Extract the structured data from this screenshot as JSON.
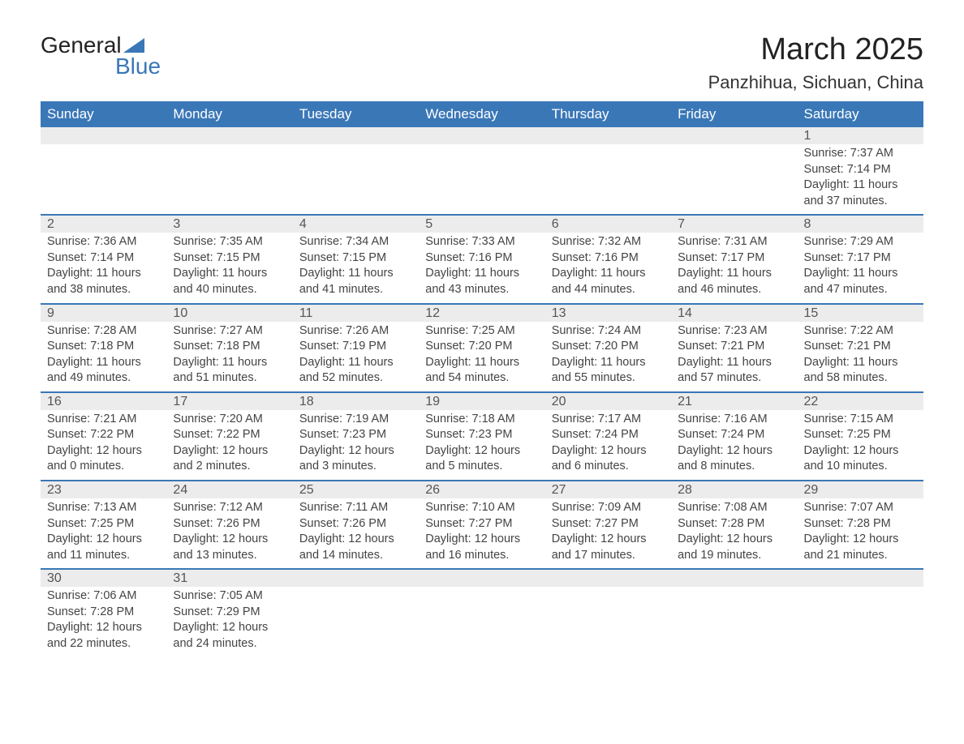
{
  "logo": {
    "text_top": "General",
    "text_bottom": "Blue",
    "accent_color": "#3a77b7"
  },
  "title": "March 2025",
  "location": "Panzhihua, Sichuan, China",
  "colors": {
    "header_bg": "#3a77b7",
    "header_text": "#ffffff",
    "daynum_bg": "#ececec",
    "row_border": "#3a77b7",
    "body_text": "#444444"
  },
  "typography": {
    "title_fontsize": 38,
    "location_fontsize": 22,
    "header_fontsize": 17,
    "daynum_fontsize": 16,
    "detail_fontsize": 14.5
  },
  "day_headers": [
    "Sunday",
    "Monday",
    "Tuesday",
    "Wednesday",
    "Thursday",
    "Friday",
    "Saturday"
  ],
  "weeks": [
    [
      null,
      null,
      null,
      null,
      null,
      null,
      {
        "n": "1",
        "sr": "Sunrise: 7:37 AM",
        "ss": "Sunset: 7:14 PM",
        "d1": "Daylight: 11 hours",
        "d2": "and 37 minutes."
      }
    ],
    [
      {
        "n": "2",
        "sr": "Sunrise: 7:36 AM",
        "ss": "Sunset: 7:14 PM",
        "d1": "Daylight: 11 hours",
        "d2": "and 38 minutes."
      },
      {
        "n": "3",
        "sr": "Sunrise: 7:35 AM",
        "ss": "Sunset: 7:15 PM",
        "d1": "Daylight: 11 hours",
        "d2": "and 40 minutes."
      },
      {
        "n": "4",
        "sr": "Sunrise: 7:34 AM",
        "ss": "Sunset: 7:15 PM",
        "d1": "Daylight: 11 hours",
        "d2": "and 41 minutes."
      },
      {
        "n": "5",
        "sr": "Sunrise: 7:33 AM",
        "ss": "Sunset: 7:16 PM",
        "d1": "Daylight: 11 hours",
        "d2": "and 43 minutes."
      },
      {
        "n": "6",
        "sr": "Sunrise: 7:32 AM",
        "ss": "Sunset: 7:16 PM",
        "d1": "Daylight: 11 hours",
        "d2": "and 44 minutes."
      },
      {
        "n": "7",
        "sr": "Sunrise: 7:31 AM",
        "ss": "Sunset: 7:17 PM",
        "d1": "Daylight: 11 hours",
        "d2": "and 46 minutes."
      },
      {
        "n": "8",
        "sr": "Sunrise: 7:29 AM",
        "ss": "Sunset: 7:17 PM",
        "d1": "Daylight: 11 hours",
        "d2": "and 47 minutes."
      }
    ],
    [
      {
        "n": "9",
        "sr": "Sunrise: 7:28 AM",
        "ss": "Sunset: 7:18 PM",
        "d1": "Daylight: 11 hours",
        "d2": "and 49 minutes."
      },
      {
        "n": "10",
        "sr": "Sunrise: 7:27 AM",
        "ss": "Sunset: 7:18 PM",
        "d1": "Daylight: 11 hours",
        "d2": "and 51 minutes."
      },
      {
        "n": "11",
        "sr": "Sunrise: 7:26 AM",
        "ss": "Sunset: 7:19 PM",
        "d1": "Daylight: 11 hours",
        "d2": "and 52 minutes."
      },
      {
        "n": "12",
        "sr": "Sunrise: 7:25 AM",
        "ss": "Sunset: 7:20 PM",
        "d1": "Daylight: 11 hours",
        "d2": "and 54 minutes."
      },
      {
        "n": "13",
        "sr": "Sunrise: 7:24 AM",
        "ss": "Sunset: 7:20 PM",
        "d1": "Daylight: 11 hours",
        "d2": "and 55 minutes."
      },
      {
        "n": "14",
        "sr": "Sunrise: 7:23 AM",
        "ss": "Sunset: 7:21 PM",
        "d1": "Daylight: 11 hours",
        "d2": "and 57 minutes."
      },
      {
        "n": "15",
        "sr": "Sunrise: 7:22 AM",
        "ss": "Sunset: 7:21 PM",
        "d1": "Daylight: 11 hours",
        "d2": "and 58 minutes."
      }
    ],
    [
      {
        "n": "16",
        "sr": "Sunrise: 7:21 AM",
        "ss": "Sunset: 7:22 PM",
        "d1": "Daylight: 12 hours",
        "d2": "and 0 minutes."
      },
      {
        "n": "17",
        "sr": "Sunrise: 7:20 AM",
        "ss": "Sunset: 7:22 PM",
        "d1": "Daylight: 12 hours",
        "d2": "and 2 minutes."
      },
      {
        "n": "18",
        "sr": "Sunrise: 7:19 AM",
        "ss": "Sunset: 7:23 PM",
        "d1": "Daylight: 12 hours",
        "d2": "and 3 minutes."
      },
      {
        "n": "19",
        "sr": "Sunrise: 7:18 AM",
        "ss": "Sunset: 7:23 PM",
        "d1": "Daylight: 12 hours",
        "d2": "and 5 minutes."
      },
      {
        "n": "20",
        "sr": "Sunrise: 7:17 AM",
        "ss": "Sunset: 7:24 PM",
        "d1": "Daylight: 12 hours",
        "d2": "and 6 minutes."
      },
      {
        "n": "21",
        "sr": "Sunrise: 7:16 AM",
        "ss": "Sunset: 7:24 PM",
        "d1": "Daylight: 12 hours",
        "d2": "and 8 minutes."
      },
      {
        "n": "22",
        "sr": "Sunrise: 7:15 AM",
        "ss": "Sunset: 7:25 PM",
        "d1": "Daylight: 12 hours",
        "d2": "and 10 minutes."
      }
    ],
    [
      {
        "n": "23",
        "sr": "Sunrise: 7:13 AM",
        "ss": "Sunset: 7:25 PM",
        "d1": "Daylight: 12 hours",
        "d2": "and 11 minutes."
      },
      {
        "n": "24",
        "sr": "Sunrise: 7:12 AM",
        "ss": "Sunset: 7:26 PM",
        "d1": "Daylight: 12 hours",
        "d2": "and 13 minutes."
      },
      {
        "n": "25",
        "sr": "Sunrise: 7:11 AM",
        "ss": "Sunset: 7:26 PM",
        "d1": "Daylight: 12 hours",
        "d2": "and 14 minutes."
      },
      {
        "n": "26",
        "sr": "Sunrise: 7:10 AM",
        "ss": "Sunset: 7:27 PM",
        "d1": "Daylight: 12 hours",
        "d2": "and 16 minutes."
      },
      {
        "n": "27",
        "sr": "Sunrise: 7:09 AM",
        "ss": "Sunset: 7:27 PM",
        "d1": "Daylight: 12 hours",
        "d2": "and 17 minutes."
      },
      {
        "n": "28",
        "sr": "Sunrise: 7:08 AM",
        "ss": "Sunset: 7:28 PM",
        "d1": "Daylight: 12 hours",
        "d2": "and 19 minutes."
      },
      {
        "n": "29",
        "sr": "Sunrise: 7:07 AM",
        "ss": "Sunset: 7:28 PM",
        "d1": "Daylight: 12 hours",
        "d2": "and 21 minutes."
      }
    ],
    [
      {
        "n": "30",
        "sr": "Sunrise: 7:06 AM",
        "ss": "Sunset: 7:28 PM",
        "d1": "Daylight: 12 hours",
        "d2": "and 22 minutes."
      },
      {
        "n": "31",
        "sr": "Sunrise: 7:05 AM",
        "ss": "Sunset: 7:29 PM",
        "d1": "Daylight: 12 hours",
        "d2": "and 24 minutes."
      },
      null,
      null,
      null,
      null,
      null
    ]
  ]
}
